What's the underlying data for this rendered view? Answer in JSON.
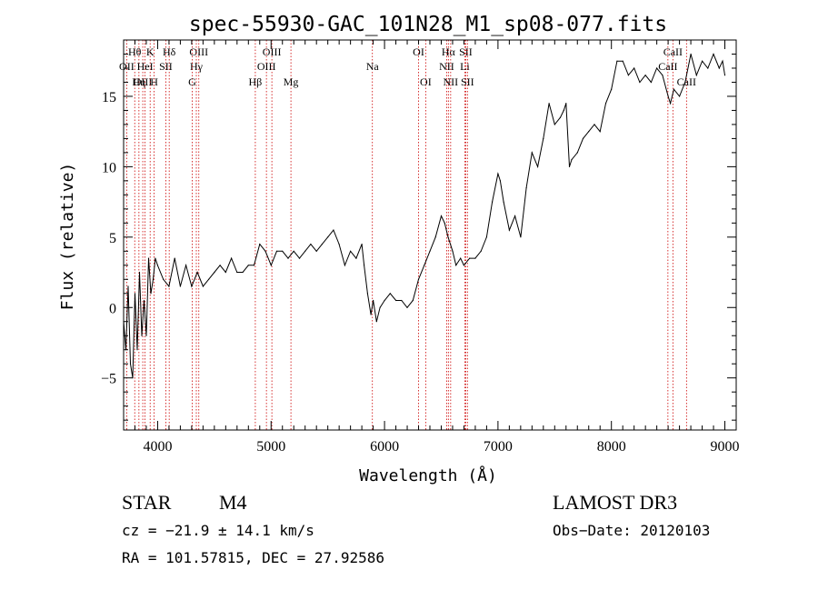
{
  "chart_data": {
    "type": "line",
    "title": "spec-55930-GAC_101N28_M1_sp08-077.fits",
    "xlabel": "Wavelength (Å)",
    "ylabel": "Flux (relative)",
    "xlim": [
      3700,
      9100
    ],
    "ylim": [
      -8.7,
      19.0
    ],
    "xticks": [
      4000,
      5000,
      6000,
      7000,
      8000,
      9000
    ],
    "xtick_labels": [
      "4000",
      "5000",
      "6000",
      "7000",
      "8000",
      "9000"
    ],
    "yticks": [
      -5,
      0,
      5,
      10,
      15
    ],
    "ytick_labels": [
      "−5",
      "0",
      "5",
      "10",
      "15"
    ],
    "series": [
      {
        "name": "spectrum",
        "x": [
          3700,
          3720,
          3740,
          3760,
          3780,
          3800,
          3820,
          3840,
          3860,
          3880,
          3900,
          3920,
          3940,
          3960,
          3980,
          4000,
          4050,
          4100,
          4150,
          4200,
          4250,
          4300,
          4350,
          4400,
          4450,
          4500,
          4550,
          4600,
          4650,
          4700,
          4750,
          4800,
          4850,
          4900,
          4950,
          5000,
          5050,
          5100,
          5150,
          5200,
          5250,
          5300,
          5350,
          5400,
          5450,
          5500,
          5550,
          5600,
          5650,
          5700,
          5750,
          5800,
          5820,
          5850,
          5880,
          5900,
          5930,
          5960,
          6000,
          6050,
          6100,
          6150,
          6200,
          6250,
          6300,
          6350,
          6400,
          6450,
          6500,
          6530,
          6560,
          6600,
          6630,
          6670,
          6700,
          6750,
          6800,
          6850,
          6900,
          6950,
          7000,
          7020,
          7050,
          7100,
          7150,
          7200,
          7250,
          7300,
          7350,
          7400,
          7450,
          7500,
          7550,
          7580,
          7600,
          7630,
          7650,
          7700,
          7750,
          7800,
          7850,
          7900,
          7950,
          8000,
          8050,
          8100,
          8150,
          8200,
          8250,
          8300,
          8350,
          8400,
          8450,
          8500,
          8520,
          8550,
          8600,
          8650,
          8700,
          8750,
          8800,
          8850,
          8900,
          8950,
          8980,
          9000
        ],
        "y": [
          -1.0,
          -3.0,
          1.5,
          -4.0,
          -5.0,
          1.0,
          -3.0,
          2.5,
          -2.0,
          0.5,
          -2.0,
          3.5,
          1.0,
          2.0,
          3.5,
          3.0,
          2.0,
          1.5,
          3.5,
          1.5,
          3.0,
          1.5,
          2.5,
          1.5,
          2.0,
          2.5,
          3.0,
          2.5,
          3.5,
          2.5,
          2.5,
          3.0,
          3.0,
          4.5,
          4.0,
          3.0,
          4.0,
          4.0,
          3.5,
          4.0,
          3.5,
          4.0,
          4.5,
          4.0,
          4.5,
          5.0,
          5.5,
          4.5,
          3.0,
          4.0,
          3.5,
          4.5,
          3.0,
          1.0,
          -0.5,
          0.5,
          -1.0,
          0.0,
          0.5,
          1.0,
          0.5,
          0.5,
          0.0,
          0.5,
          2.0,
          3.0,
          4.0,
          5.0,
          6.5,
          6.0,
          5.0,
          4.0,
          3.0,
          3.5,
          3.0,
          3.5,
          3.5,
          4.0,
          5.0,
          7.5,
          9.5,
          9.0,
          7.5,
          5.5,
          6.5,
          5.0,
          8.5,
          11.0,
          10.0,
          12.0,
          14.5,
          13.0,
          13.5,
          14.0,
          14.5,
          10.0,
          10.5,
          11.0,
          12.0,
          12.5,
          13.0,
          12.5,
          14.5,
          15.5,
          17.5,
          17.5,
          16.5,
          17.0,
          16.0,
          16.5,
          16.0,
          17.0,
          16.5,
          15.0,
          14.5,
          15.5,
          15.0,
          16.0,
          18.0,
          16.5,
          17.5,
          17.0,
          18.0,
          17.0,
          17.5,
          16.5
        ]
      }
    ],
    "lines": [
      {
        "label": "Hθ",
        "x": 3798,
        "row": 1
      },
      {
        "label": "OII",
        "x": 3727,
        "row": 2
      },
      {
        "label": "OIII",
        "x": 3869,
        "row": 3
      },
      {
        "label": "Hη",
        "x": 3835,
        "row": 3
      },
      {
        "label": "HeI",
        "x": 3889,
        "row": 2
      },
      {
        "label": "K",
        "x": 3934,
        "row": 1
      },
      {
        "label": "H",
        "x": 3969,
        "row": 3
      },
      {
        "label": "Hδ",
        "x": 4102,
        "row": 1
      },
      {
        "label": "SII",
        "x": 4072,
        "row": 2
      },
      {
        "label": "OIII",
        "x": 4363,
        "row": 1
      },
      {
        "label": "Hγ",
        "x": 4341,
        "row": 2
      },
      {
        "label": "G",
        "x": 4305,
        "row": 3
      },
      {
        "label": "Hβ",
        "x": 4861,
        "row": 3
      },
      {
        "label": "OIII",
        "x": 5007,
        "row": 1
      },
      {
        "label": "OIII",
        "x": 4959,
        "row": 2
      },
      {
        "label": "Mg",
        "x": 5175,
        "row": 3
      },
      {
        "label": "Na",
        "x": 5893,
        "row": 2
      },
      {
        "label": "OI",
        "x": 6300,
        "row": 1
      },
      {
        "label": "OI",
        "x": 6363,
        "row": 3
      },
      {
        "label": "Hα",
        "x": 6563,
        "row": 1
      },
      {
        "label": "NII",
        "x": 6548,
        "row": 2
      },
      {
        "label": "NII",
        "x": 6583,
        "row": 3
      },
      {
        "label": "SII",
        "x": 6716,
        "row": 1
      },
      {
        "label": "Li",
        "x": 6708,
        "row": 2
      },
      {
        "label": "SII",
        "x": 6731,
        "row": 3
      },
      {
        "label": "CaII",
        "x": 8542,
        "row": 1
      },
      {
        "label": "CaII",
        "x": 8498,
        "row": 2
      },
      {
        "label": "CaII",
        "x": 8662,
        "row": 3
      }
    ]
  },
  "info": {
    "object_class": "STAR",
    "subclass": "M4",
    "survey": "LAMOST DR3",
    "cz": "cz = −21.9 ± 14.1 km/s",
    "obs_date": "Obs−Date: 20120103",
    "coords": "RA = 101.57815, DEC =  27.92586"
  },
  "colors": {
    "line_marker": "#cc0000",
    "spectrum": "#000000"
  }
}
